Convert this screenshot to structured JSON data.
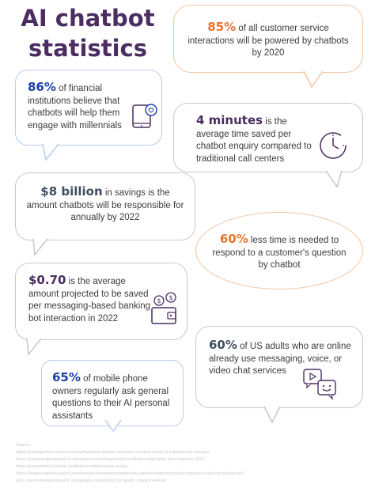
{
  "title": {
    "line1": "AI chatbot",
    "line2": "statistics"
  },
  "colors": {
    "title": "#4b2d62",
    "orange": "#e8742c",
    "blue": "#1a3fa8",
    "slate": "#3f4f62",
    "border": "#c8c8c8",
    "orange_border": "#f2c59f",
    "blue_border": "#b9cdea"
  },
  "stats": {
    "s1": {
      "value": "85%",
      "text": "of all customer service interactions will be powered by chatbots by 2020"
    },
    "s2": {
      "value": "86%",
      "text": "of financial institutions believe that chatbots will help them engage with millennials",
      "icon": "smartphone-heart-icon"
    },
    "s3": {
      "value": "4 minutes",
      "text": "is the average time saved per chatbot enquiry compared to traditional call centers",
      "icon": "clock-icon"
    },
    "s4": {
      "value": "$8 billion",
      "text": "in savings is the amount chatbots will be responsible for annually by 2022"
    },
    "s5": {
      "value": "60%",
      "text": "less time is needed to respond to a customer's question by chatbot"
    },
    "s6": {
      "value": "$0.70",
      "text": "is the average amount projected to be saved per messaging-based banking bot interaction in 2022",
      "icon": "wallet-coins-icon"
    },
    "s7": {
      "value": "60%",
      "text": "of US adults who are online already use messaging, voice, or video chat services",
      "icon": "video-chat-icon"
    },
    "s8": {
      "value": "65%",
      "text": "of mobile phone owners regularly ask general questions to their AI personal assistants"
    }
  },
  "sources": {
    "label": "Source:",
    "lines": [
      "https://www.gartner.com/smarterwithgartner/gartner-predicts-a-virtual-world-of-exponential-change/",
      "https://www.juniperresearch.com/resources/infographics/chatbots-infographic-key-statistics-2017",
      "https://personetics.com/ai-chatbots-numbers-bank-ready/",
      "https://www.juniperresearch.com/researchstore/innovation-disruption/chatbots/retail-ecommerce-banking-healthcare?utm_source=juniperpr&utm_campaign=chatbot2017pr1&utm_medium=email"
    ]
  }
}
